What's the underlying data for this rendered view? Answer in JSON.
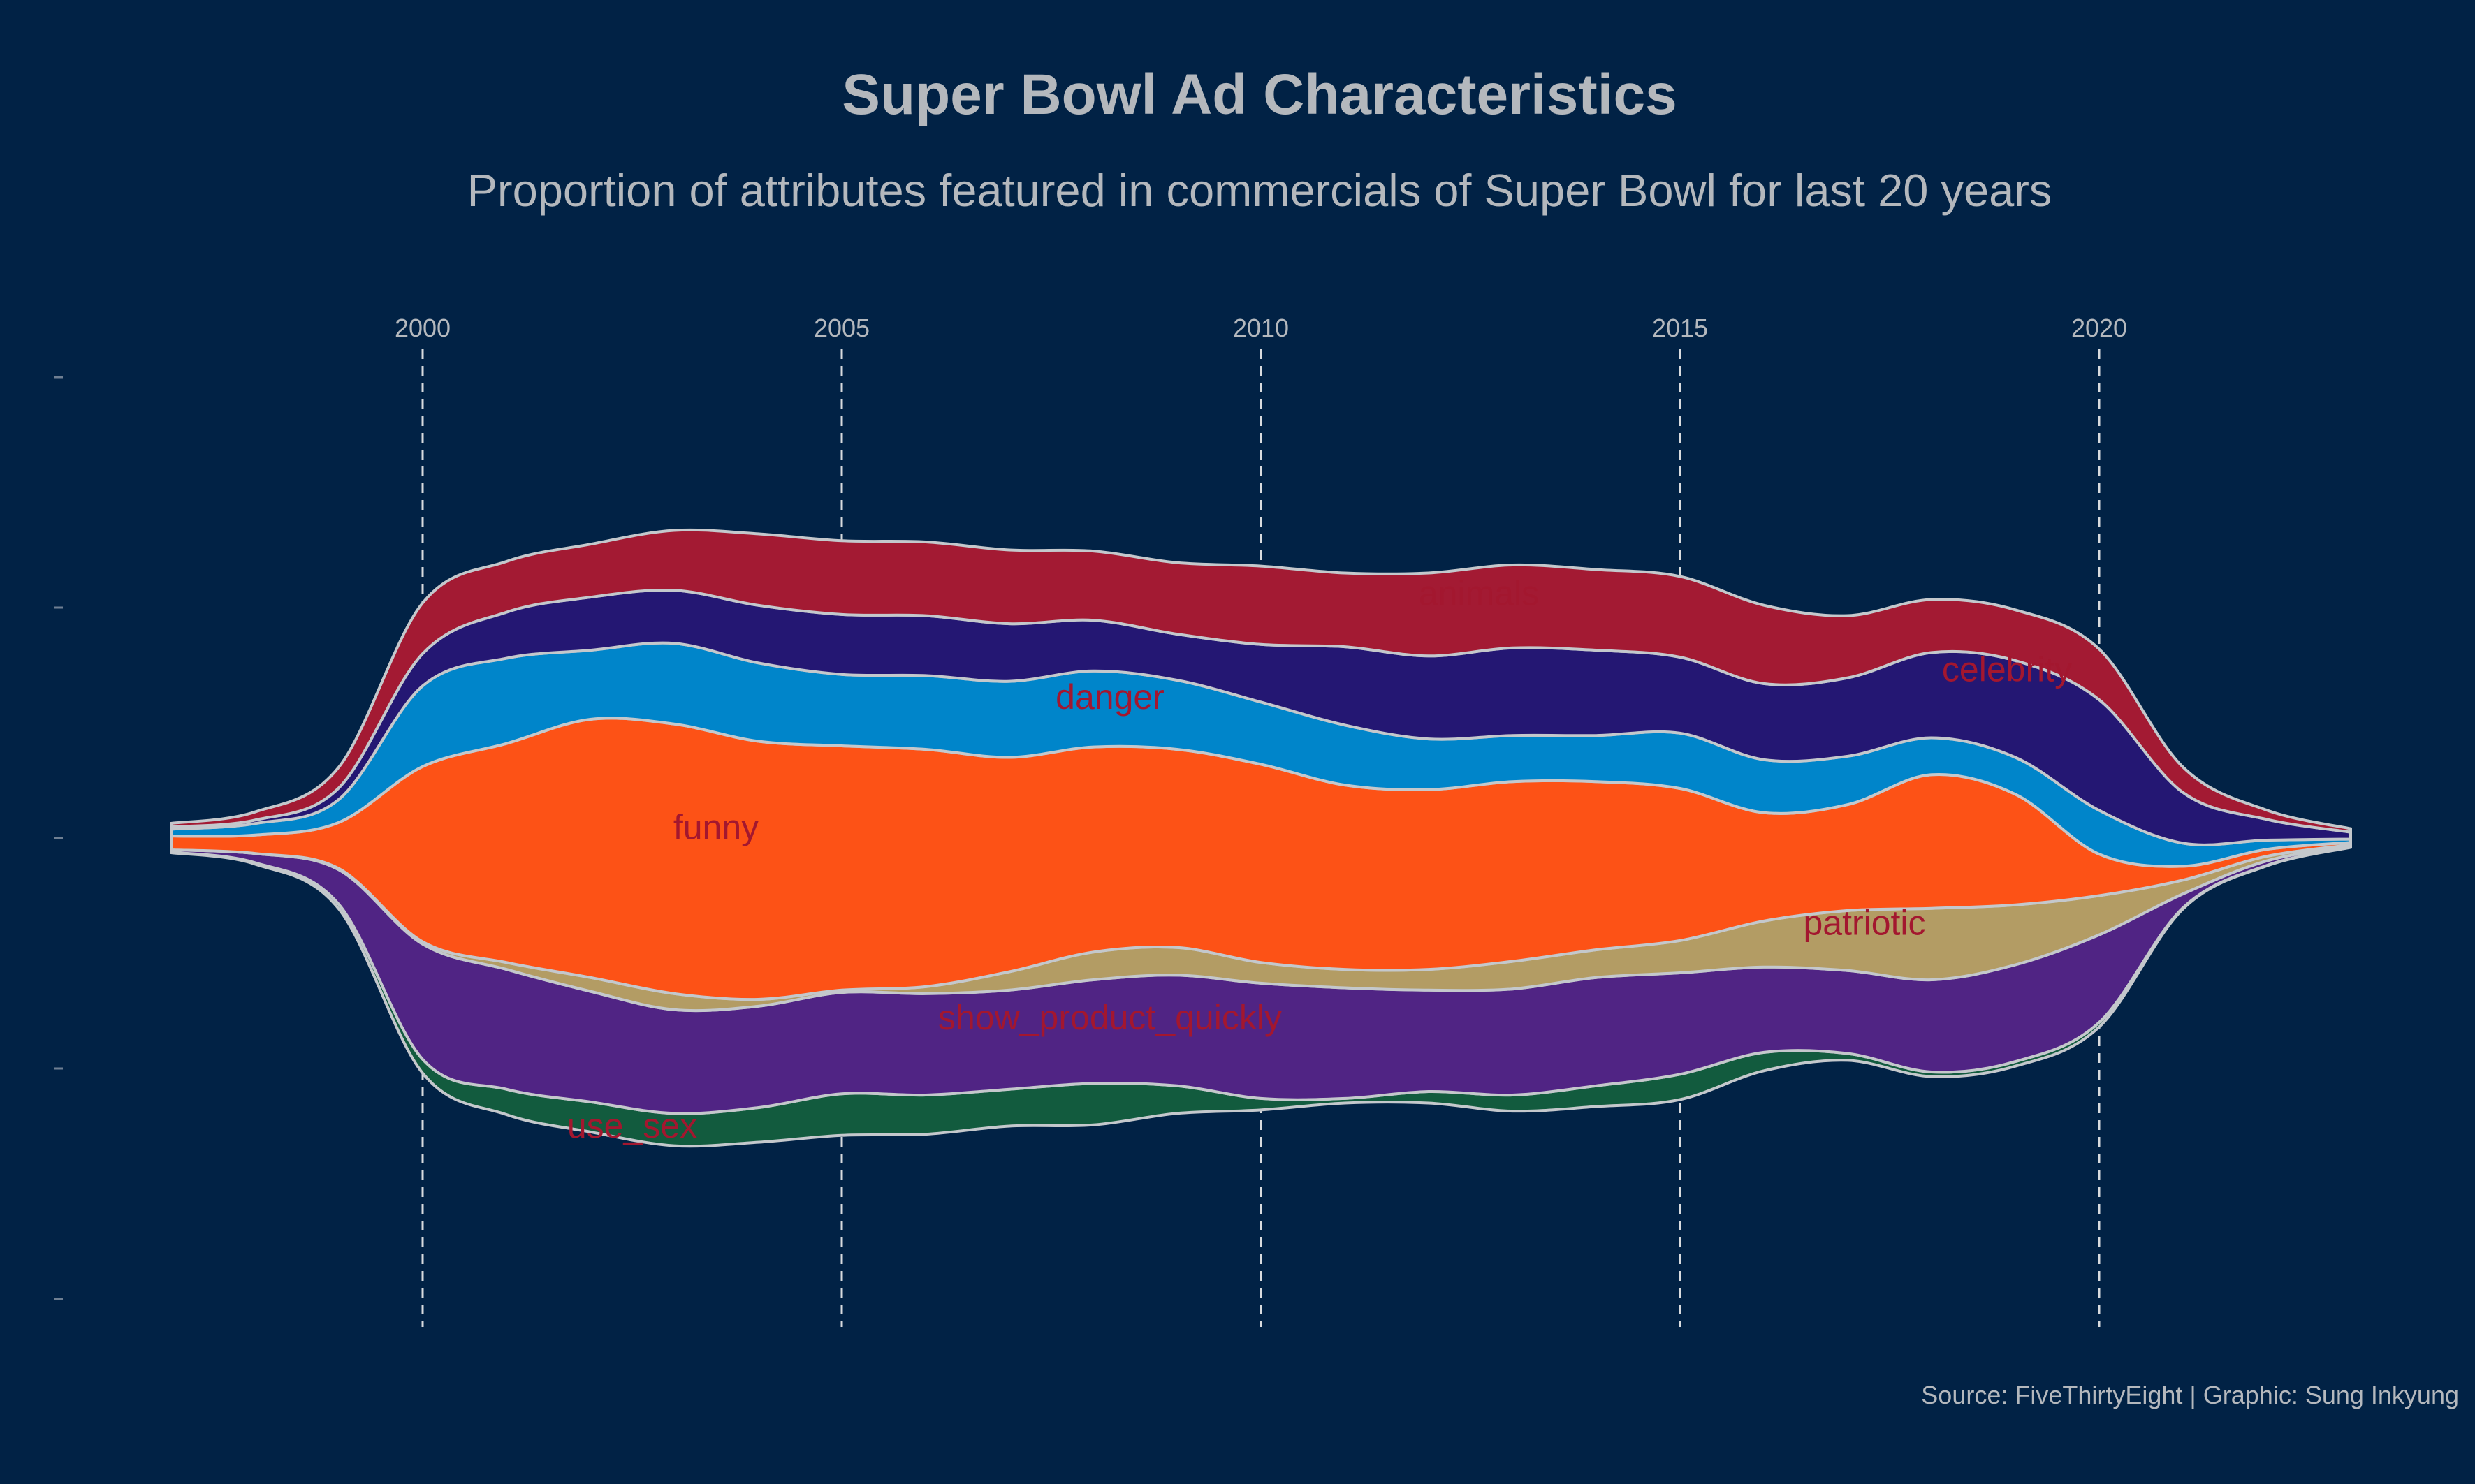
{
  "chart_data": {
    "type": "area",
    "title": "Super Bowl Ad Characteristics",
    "subtitle": "Proportion of attributes featured in commercials of Super Bowl for last 20 years",
    "caption": "Source: FiveThirtyEight | Graphic: Sung Inkyung",
    "x_ticks": [
      2000,
      2005,
      2010,
      2015,
      2020
    ],
    "xlim": [
      1997.0,
      2023.0
    ],
    "grid": "vertical dashed at x ticks",
    "stack_order_bottom_to_top": [
      "use_sex",
      "show_product_quickly",
      "patriotic",
      "funny",
      "danger",
      "celebrity",
      "animals"
    ],
    "x": [
      1997,
      1998,
      1999,
      2000,
      2001,
      2002,
      2003,
      2004,
      2005,
      2006,
      2007,
      2008,
      2009,
      2010,
      2011,
      2012,
      2013,
      2014,
      2015,
      2016,
      2017,
      2018,
      2019,
      2020,
      2021,
      2022,
      2023
    ],
    "series": [
      {
        "name": "use_sex",
        "color": "#125b3e",
        "values": [
          0.02,
          0.06,
          0.2,
          0.6,
          1.1,
          1.3,
          1.4,
          1.5,
          1.8,
          1.7,
          1.6,
          1.8,
          1.2,
          0.5,
          0.2,
          0.5,
          0.7,
          0.9,
          1.1,
          0.8,
          0.3,
          0.2,
          0.2,
          0.2,
          0.05,
          0.02,
          0.01
        ]
      },
      {
        "name": "show_product_quickly",
        "color": "#502484",
        "values": [
          0.1,
          0.4,
          1.5,
          5.0,
          5.2,
          4.8,
          4.5,
          4.4,
          4.4,
          4.4,
          4.3,
          4.5,
          4.8,
          5.0,
          4.8,
          4.4,
          4.6,
          4.7,
          4.4,
          3.7,
          3.6,
          4.0,
          4.2,
          3.8,
          0.6,
          0.2,
          0.05
        ]
      },
      {
        "name": "patriotic",
        "color": "#b39c64",
        "values": [
          0.0,
          0.0,
          0.05,
          0.1,
          0.3,
          0.6,
          0.7,
          0.3,
          0.1,
          0.3,
          0.8,
          1.2,
          1.2,
          0.9,
          0.8,
          0.9,
          1.2,
          1.2,
          1.4,
          2.0,
          2.6,
          3.1,
          2.6,
          1.7,
          0.6,
          0.2,
          0.05
        ]
      },
      {
        "name": "funny",
        "color": "#fd5216",
        "values": [
          0.6,
          0.8,
          2.0,
          7.6,
          9.5,
          11.2,
          11.7,
          11.2,
          10.6,
          10.3,
          9.3,
          8.9,
          8.6,
          8.6,
          8.0,
          7.8,
          7.8,
          7.3,
          6.6,
          4.7,
          4.6,
          5.8,
          4.8,
          1.8,
          0.6,
          0.3,
          0.1
        ]
      },
      {
        "name": "danger",
        "color": "#0085ca",
        "values": [
          0.3,
          0.5,
          1.0,
          3.5,
          3.7,
          3.0,
          3.5,
          3.4,
          3.1,
          3.2,
          3.3,
          3.3,
          3.0,
          2.7,
          2.6,
          2.2,
          2.0,
          2.0,
          2.4,
          2.3,
          2.1,
          1.6,
          1.6,
          1.9,
          1.0,
          0.4,
          0.15
        ]
      },
      {
        "name": "celebrity",
        "color": "#241773",
        "values": [
          0.1,
          0.15,
          0.5,
          1.4,
          2.0,
          2.3,
          2.3,
          2.5,
          2.6,
          2.6,
          2.5,
          2.2,
          2.0,
          2.5,
          3.4,
          3.6,
          3.8,
          3.7,
          3.3,
          3.3,
          3.4,
          3.7,
          4.2,
          4.8,
          2.2,
          0.9,
          0.3
        ]
      },
      {
        "name": "animals",
        "color": "#a31a33",
        "values": [
          0.15,
          0.35,
          0.9,
          2.2,
          2.2,
          2.3,
          2.6,
          3.1,
          3.2,
          3.2,
          3.2,
          3.0,
          3.1,
          3.4,
          3.2,
          3.6,
          3.6,
          3.5,
          3.5,
          3.4,
          2.7,
          2.3,
          2.2,
          2.2,
          1.1,
          0.4,
          0.15
        ]
      }
    ],
    "annotations": [
      {
        "text": "funny",
        "x": 2003.5,
        "y": 0.35
      },
      {
        "text": "danger",
        "x": 2008.2,
        "y": 6.0
      },
      {
        "text": "animals",
        "x": 2012.6,
        "y": 10.5
      },
      {
        "text": "celebrity",
        "x": 2018.9,
        "y": 7.2
      },
      {
        "text": "patriotic",
        "x": 2017.2,
        "y": -3.8
      },
      {
        "text": "show_product_quickly",
        "x": 2008.2,
        "y": -7.9
      },
      {
        "text": "use_sex",
        "x": 2002.5,
        "y": -12.6
      }
    ]
  }
}
